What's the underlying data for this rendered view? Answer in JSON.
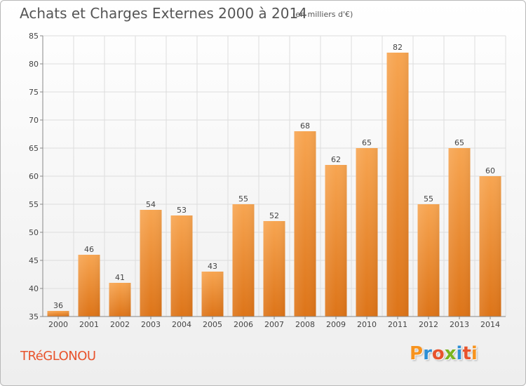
{
  "header": {
    "title": "Achats et Charges Externes 2000 à 2014",
    "unit": "(en milliers d'€)"
  },
  "footer": {
    "town": "TRéGLONOU",
    "logo": "Proxiti",
    "logo_colors": [
      "#f7931e",
      "#2d8fd5",
      "#e8532c",
      "#7ab51d",
      "#2d8fd5",
      "#e8532c",
      "#f7931e"
    ]
  },
  "colors": {
    "bar_top": "#f7a551",
    "bar_bottom": "#dd7418",
    "grid": "#dddddd",
    "axis": "#888888"
  },
  "chart_data": {
    "type": "bar",
    "title": "Achats et Charges Externes 2000 à 2014",
    "subtitle": "(en milliers d'€)",
    "categories": [
      "2000",
      "2001",
      "2002",
      "2003",
      "2004",
      "2005",
      "2006",
      "2007",
      "2008",
      "2009",
      "2010",
      "2011",
      "2012",
      "2013",
      "2014"
    ],
    "values": [
      36,
      46,
      41,
      54,
      53,
      43,
      55,
      52,
      68,
      62,
      65,
      82,
      55,
      65,
      60
    ],
    "ylim": [
      35,
      85
    ],
    "yticks": [
      35,
      40,
      45,
      50,
      55,
      60,
      65,
      70,
      75,
      80,
      85
    ],
    "grid": true,
    "xlabel": "",
    "ylabel": ""
  }
}
